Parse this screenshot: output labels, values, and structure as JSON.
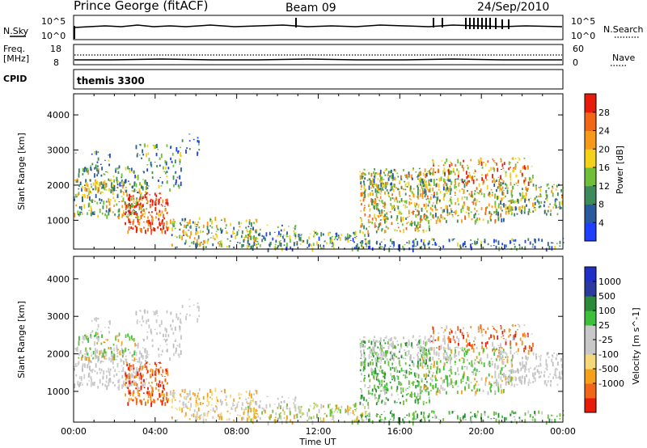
{
  "header": {
    "station": "Prince George (fitACF)",
    "beam": "Beam 09",
    "date": "24/Sep/2010"
  },
  "panels": {
    "nsky": {
      "left_label": "N.Sky",
      "left_ticks": [
        "10^5",
        "10^0"
      ],
      "right_ticks": [
        "10^5",
        "10^0"
      ],
      "right_label": "N.Search"
    },
    "freq": {
      "left_label_1": "Freq.",
      "left_label_2": "[MHz]",
      "left_ticks": [
        "18",
        "8"
      ],
      "right_ticks": [
        "60",
        "0"
      ],
      "right_label": "Nave"
    },
    "cpid": {
      "label": "CPID",
      "value": "themis 3300"
    }
  },
  "colors": {
    "power_scale": [
      "#1f3fff",
      "#2a5a9e",
      "#3d8a5a",
      "#6fbf3a",
      "#f5d21a",
      "#f59a1a",
      "#f2661a",
      "#e81a0a"
    ],
    "velocity_scale": [
      "#e81a0a",
      "#f2661a",
      "#f5a01a",
      "#f5d87a",
      "#c8c8c8",
      "#c8c8c8",
      "#3dbf3a",
      "#2a8a3a",
      "#2a3a9e",
      "#1f2fc8"
    ]
  },
  "chart_data": [
    {
      "type": "heatmap",
      "name": "power",
      "ylabel": "Slant Range [km]",
      "y_ticks": [
        1000,
        2000,
        3000,
        4000
      ],
      "ylim": [
        180,
        4600
      ],
      "xlim": [
        0,
        24
      ],
      "colorbar_label": "Power [dB]",
      "colorbar_ticks": [
        4,
        8,
        12,
        16,
        20,
        24,
        28
      ],
      "colorbar_range": [
        0,
        32
      ]
    },
    {
      "type": "heatmap",
      "name": "velocity",
      "ylabel": "Slant Range [km]",
      "y_ticks": [
        1000,
        2000,
        3000,
        4000
      ],
      "ylim": [
        180,
        4600
      ],
      "xlim": [
        0,
        24
      ],
      "colorbar_label": "Velocity [m s^-1]",
      "colorbar_ticks": [
        "1000",
        "500",
        "100",
        "25",
        "-25",
        "-100",
        "-500",
        "-1000"
      ]
    }
  ],
  "x_axis": {
    "ticks": [
      "00:00",
      "04:00",
      "08:00",
      "12:00",
      "16:00",
      "20:00",
      "00:00"
    ],
    "label": "Time UT"
  }
}
